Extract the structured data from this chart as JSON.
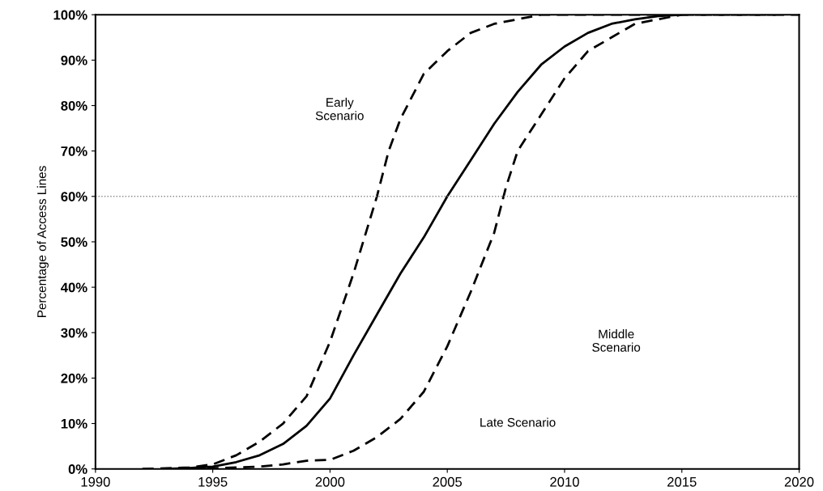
{
  "chart_data": {
    "type": "line",
    "ylabel": "Percentage of Access Lines",
    "xlim": [
      1990,
      2020
    ],
    "xticks": [
      1990,
      1995,
      2000,
      2005,
      2010,
      2015,
      2020
    ],
    "ylim": [
      0,
      100
    ],
    "yticks": [
      {
        "value": 0,
        "label": "0%"
      },
      {
        "value": 10,
        "label": "10%"
      },
      {
        "value": 20,
        "label": "20%"
      },
      {
        "value": 30,
        "label": "30%"
      },
      {
        "value": 40,
        "label": "40%"
      },
      {
        "value": 50,
        "label": "50%"
      },
      {
        "value": 60,
        "label": "60%"
      },
      {
        "value": 70,
        "label": "70%"
      },
      {
        "value": 80,
        "label": "80%"
      },
      {
        "value": 90,
        "label": "90%"
      },
      {
        "value": 100,
        "label": "100%"
      }
    ],
    "grid": false,
    "legend": false,
    "marker": "none",
    "series": [
      {
        "color": "#000000",
        "line_style": "dashed",
        "x": [
          1992,
          1994,
          1995,
          1996,
          1997,
          1998,
          1999,
          2000,
          2001,
          2002,
          2002.5,
          2003,
          2004,
          2005,
          2006,
          2007,
          2008,
          2009,
          2020
        ],
        "values": [
          0,
          0.3,
          1,
          3,
          6,
          10,
          16,
          28,
          43,
          60,
          70,
          77,
          87,
          92,
          96,
          98,
          99,
          100,
          100
        ]
      },
      {
        "color": "#000000",
        "line_style": "solid",
        "x": [
          1993,
          1994,
          1995,
          1996,
          1997,
          1998,
          1999,
          2000,
          2001,
          2002,
          2003,
          2004,
          2005,
          2006,
          2007,
          2008,
          2009,
          2010,
          2011,
          2012,
          2013,
          2014,
          2015
        ],
        "values": [
          0,
          0.2,
          0.5,
          1.5,
          3,
          5.5,
          9.5,
          15.5,
          25,
          34,
          43,
          51,
          60,
          68,
          76,
          83,
          89,
          93,
          96,
          98,
          99,
          99.7,
          100
        ]
      },
      {
        "color": "#000000",
        "line_style": "dashed",
        "x": [
          1994,
          1996,
          1997,
          1998,
          1999,
          2000,
          2001,
          2002,
          2003,
          2004,
          2005,
          2006,
          2007,
          2007.5,
          2008,
          2009,
          2010,
          2011,
          2012,
          2013,
          2014,
          2015,
          2019
        ],
        "values": [
          0,
          0.3,
          0.5,
          1,
          1.8,
          2,
          4,
          7,
          11,
          17,
          27,
          39,
          52,
          62,
          70,
          78,
          86,
          92,
          95,
          98,
          99,
          100,
          100
        ]
      }
    ],
    "ref_lines": [
      {
        "axis": "y",
        "value": 60,
        "color": "#888888",
        "line_style": "dotted"
      }
    ],
    "annotations": [
      "Early\nScenario",
      "Middle\nScenario",
      "Late Scenario"
    ]
  }
}
